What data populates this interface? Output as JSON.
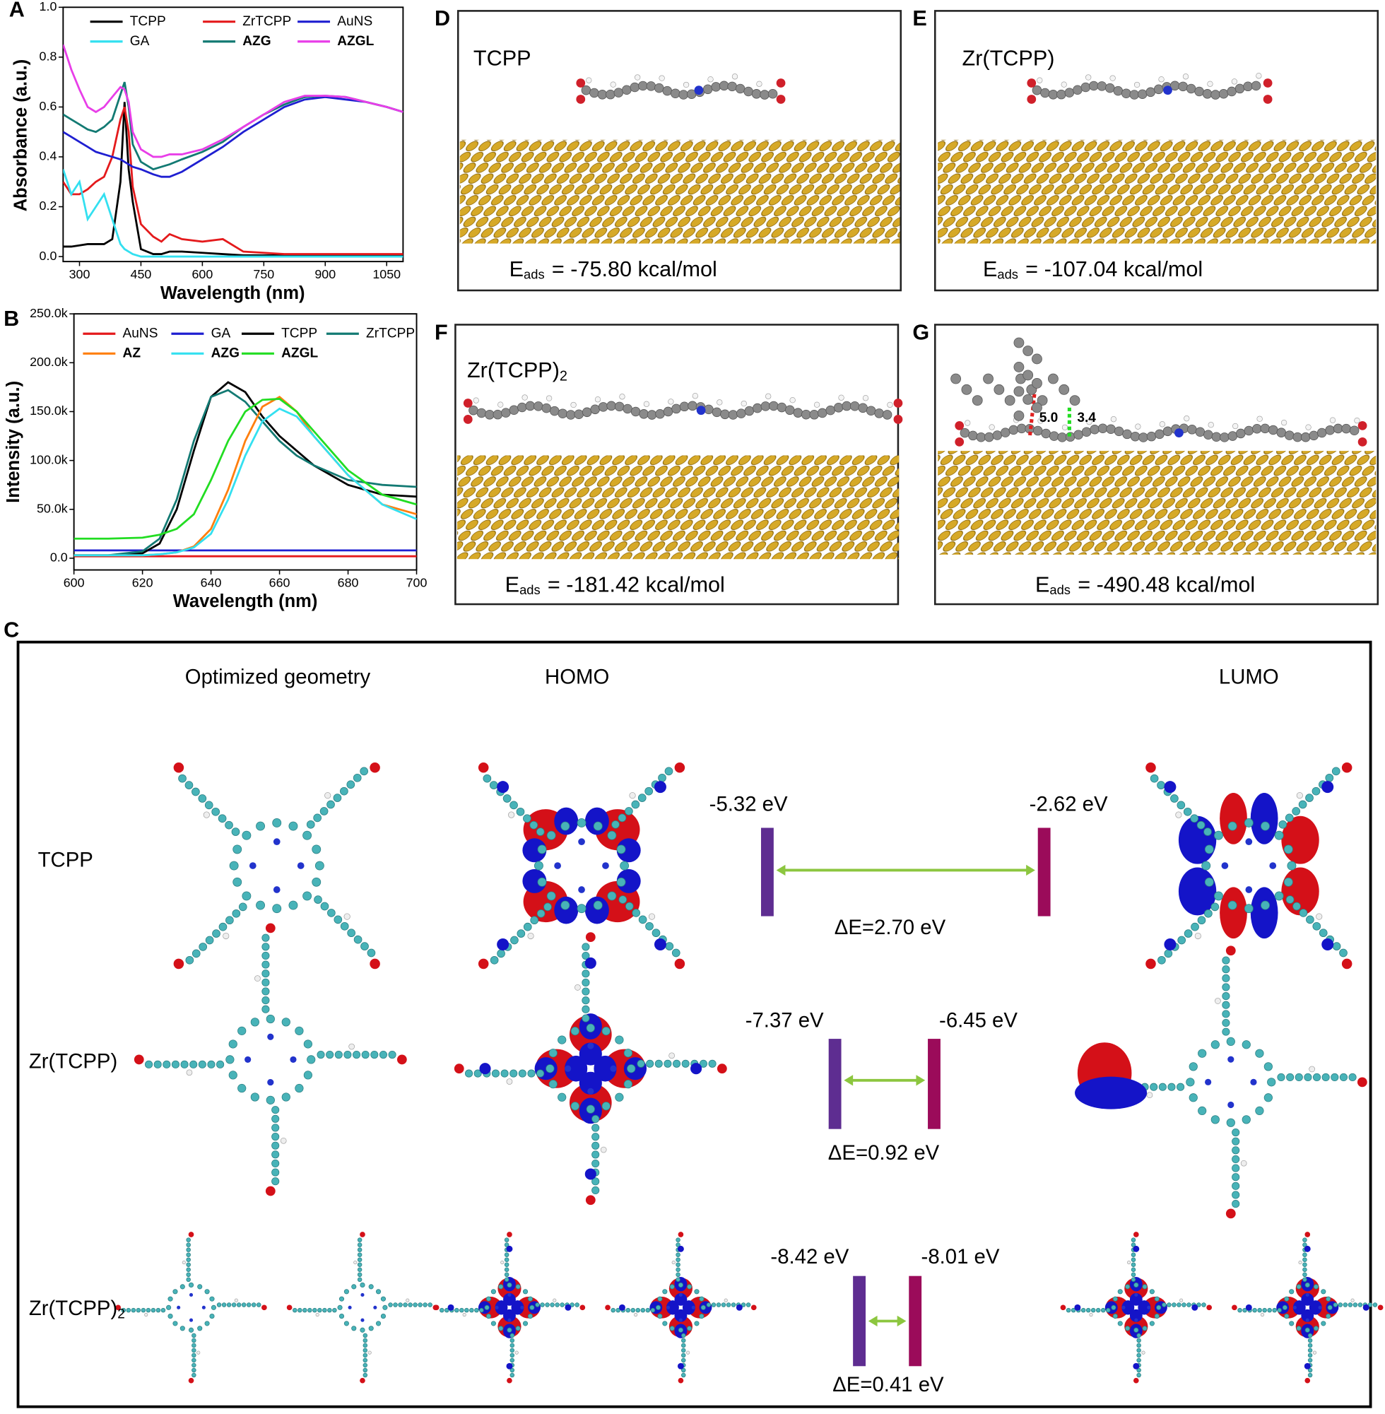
{
  "chart_data": [
    {
      "type": "line",
      "letter": "A",
      "x_label": "Wavelength (nm)",
      "y_label": "Absorbance (a.u.)",
      "x": [
        260,
        280,
        300,
        320,
        340,
        360,
        380,
        400,
        410,
        420,
        430,
        450,
        480,
        500,
        520,
        550,
        600,
        650,
        700,
        750,
        800,
        850,
        900,
        950,
        1000,
        1050,
        1090
      ],
      "series": [
        {
          "name": "TCPP",
          "color": "#000000",
          "values": [
            0.04,
            0.04,
            0.045,
            0.05,
            0.05,
            0.05,
            0.07,
            0.3,
            0.62,
            0.35,
            0.22,
            0.03,
            0.01,
            0.01,
            0.02,
            0.02,
            0.015,
            0.01,
            0.005,
            0.005,
            0.005,
            0.005,
            0.005,
            0.005,
            0.005,
            0.005,
            0.005
          ]
        },
        {
          "name": "ZrTCPP",
          "color": "#e41a1c",
          "values": [
            0.3,
            0.25,
            0.25,
            0.27,
            0.3,
            0.32,
            0.4,
            0.55,
            0.6,
            0.5,
            0.28,
            0.13,
            0.08,
            0.06,
            0.09,
            0.07,
            0.06,
            0.07,
            0.02,
            0.015,
            0.01,
            0.01,
            0.01,
            0.01,
            0.01,
            0.01,
            0.01
          ]
        },
        {
          "name": "AuNS",
          "color": "#1f1fd1",
          "values": [
            0.5,
            0.48,
            0.46,
            0.44,
            0.42,
            0.41,
            0.4,
            0.39,
            0.38,
            0.37,
            0.36,
            0.35,
            0.33,
            0.32,
            0.32,
            0.34,
            0.39,
            0.44,
            0.5,
            0.55,
            0.6,
            0.63,
            0.64,
            0.63,
            0.62,
            0.6,
            0.58
          ]
        },
        {
          "name": "GA",
          "color": "#33e0f0",
          "values": [
            0.35,
            0.25,
            0.3,
            0.15,
            0.2,
            0.25,
            0.15,
            0.05,
            0.03,
            0.02,
            0.01,
            0.0,
            0.0,
            0.0,
            0.0,
            0.0,
            0.0,
            0.0,
            0.0,
            0.0,
            0.0,
            0.0,
            0.0,
            0.0,
            0.0,
            0.0,
            0.0
          ]
        },
        {
          "name": "AZG",
          "color": "#137a73",
          "bold": true,
          "values": [
            0.57,
            0.55,
            0.53,
            0.51,
            0.5,
            0.52,
            0.55,
            0.65,
            0.7,
            0.6,
            0.45,
            0.38,
            0.35,
            0.36,
            0.37,
            0.39,
            0.42,
            0.46,
            0.52,
            0.57,
            0.61,
            0.64,
            0.645,
            0.64,
            0.62,
            0.6,
            0.58
          ]
        },
        {
          "name": "AZGL",
          "color": "#e83ee8",
          "bold": true,
          "values": [
            0.85,
            0.75,
            0.67,
            0.6,
            0.58,
            0.6,
            0.64,
            0.68,
            0.67,
            0.62,
            0.5,
            0.43,
            0.4,
            0.4,
            0.41,
            0.41,
            0.43,
            0.47,
            0.52,
            0.57,
            0.62,
            0.645,
            0.645,
            0.64,
            0.62,
            0.6,
            0.58
          ]
        }
      ],
      "xlim": [
        260,
        1090
      ],
      "xticks": [
        300,
        450,
        600,
        750,
        900,
        1050
      ],
      "ylim": [
        -0.02,
        1.0
      ],
      "yticks": [
        {
          "value": 0,
          "label": "0.0"
        },
        0.2,
        0.4,
        0.6,
        0.8,
        {
          "value": 1,
          "label": "1.0"
        }
      ]
    },
    {
      "type": "line",
      "letter": "B",
      "x_label": "Wavelength (nm)",
      "y_label": "Intensity (a.u.)",
      "x": [
        600,
        610,
        620,
        625,
        630,
        635,
        640,
        645,
        650,
        655,
        660,
        665,
        670,
        680,
        690,
        700
      ],
      "series": [
        {
          "name": "AuNS",
          "color": "#e41a1c",
          "values": [
            2000,
            2000,
            2000,
            2000,
            2000,
            2000,
            2000,
            2000,
            2000,
            2000,
            2000,
            2000,
            2000,
            2000,
            2000,
            2000
          ]
        },
        {
          "name": "GA",
          "color": "#1f1fd1",
          "values": [
            8000,
            8000,
            8000,
            8000,
            8000,
            8000,
            8000,
            8000,
            8000,
            8000,
            8000,
            8000,
            8000,
            8000,
            8000,
            8000
          ]
        },
        {
          "name": "TCPP",
          "color": "#000000",
          "values": [
            3000,
            3000,
            5000,
            15000,
            50000,
            110000,
            165000,
            180000,
            170000,
            145000,
            125000,
            110000,
            95000,
            75000,
            65000,
            63000
          ]
        },
        {
          "name": "ZrTCPP",
          "color": "#137a73",
          "values": [
            3000,
            3000,
            7000,
            20000,
            60000,
            120000,
            165000,
            172000,
            160000,
            140000,
            120000,
            105000,
            95000,
            80000,
            75000,
            73000
          ]
        },
        {
          "name": "AZ",
          "color": "#ff7f0e",
          "bold": true,
          "values": [
            3000,
            3000,
            3000,
            4000,
            6000,
            12000,
            30000,
            70000,
            120000,
            155000,
            165000,
            150000,
            125000,
            85000,
            55000,
            45000
          ]
        },
        {
          "name": "AZG",
          "color": "#33e0f0",
          "bold": true,
          "values": [
            3000,
            3000,
            3000,
            4000,
            6000,
            11000,
            25000,
            60000,
            105000,
            140000,
            153000,
            145000,
            125000,
            85000,
            55000,
            40000
          ]
        },
        {
          "name": "AZGL",
          "color": "#22dd22",
          "bold": true,
          "values": [
            20000,
            20000,
            21000,
            24000,
            30000,
            45000,
            80000,
            120000,
            150000,
            162000,
            163000,
            150000,
            130000,
            90000,
            65000,
            55000
          ]
        }
      ],
      "xlim": [
        600,
        700
      ],
      "xticks": [
        600,
        620,
        640,
        660,
        680,
        700
      ],
      "ylim": [
        -12000,
        250000
      ],
      "yticks": [
        {
          "value": 0,
          "label": "0.0"
        },
        {
          "value": 50000,
          "label": "50.0k"
        },
        {
          "value": 100000,
          "label": "100.0k"
        },
        {
          "value": 150000,
          "label": "150.0k"
        },
        {
          "value": 200000,
          "label": "200.0k"
        },
        {
          "value": 250000,
          "label": "250.0k"
        }
      ]
    }
  ],
  "panels": [
    {
      "letter": "D",
      "molecule": {
        "text": "TCPP"
      },
      "energy": {
        "symbol": "E",
        "subscript": "ads",
        "text": "= -75.80 kcal/mol"
      }
    },
    {
      "letter": "E",
      "molecule": {
        "text": "Zr(TCPP)"
      },
      "energy": {
        "symbol": "E",
        "subscript": "ads",
        "text": "= -107.04 kcal/mol"
      }
    },
    {
      "letter": "F",
      "molecule": {
        "text": "Zr(TCPP)",
        "subscript": "2"
      },
      "energy": {
        "symbol": "E",
        "subscript": "ads",
        "text": "= -181.42 kcal/mol"
      }
    },
    {
      "letter": "G",
      "annotations": [
        "5.0",
        "3.4"
      ],
      "energy": {
        "symbol": "E",
        "subscript": "ads",
        "text": "= -490.48 kcal/mol"
      }
    }
  ],
  "orbitals": {
    "letter": "C",
    "headers": [
      "Optimized geometry",
      "HOMO",
      "LUMO"
    ],
    "rows": [
      {
        "label": {
          "text": "TCPP"
        },
        "homo": "-5.32 eV",
        "lumo": "-2.62 eV",
        "gap": "ΔE=2.70 eV"
      },
      {
        "label": {
          "text": "Zr(TCPP)"
        },
        "homo": "-7.37 eV",
        "lumo": "-6.45 eV",
        "gap": "ΔE=0.92 eV"
      },
      {
        "label": {
          "text": "Zr(TCPP)",
          "subscript": "2"
        },
        "homo": "-8.42 eV",
        "lumo": "-8.01 eV",
        "gap": "ΔE=0.41 eV"
      }
    ]
  }
}
